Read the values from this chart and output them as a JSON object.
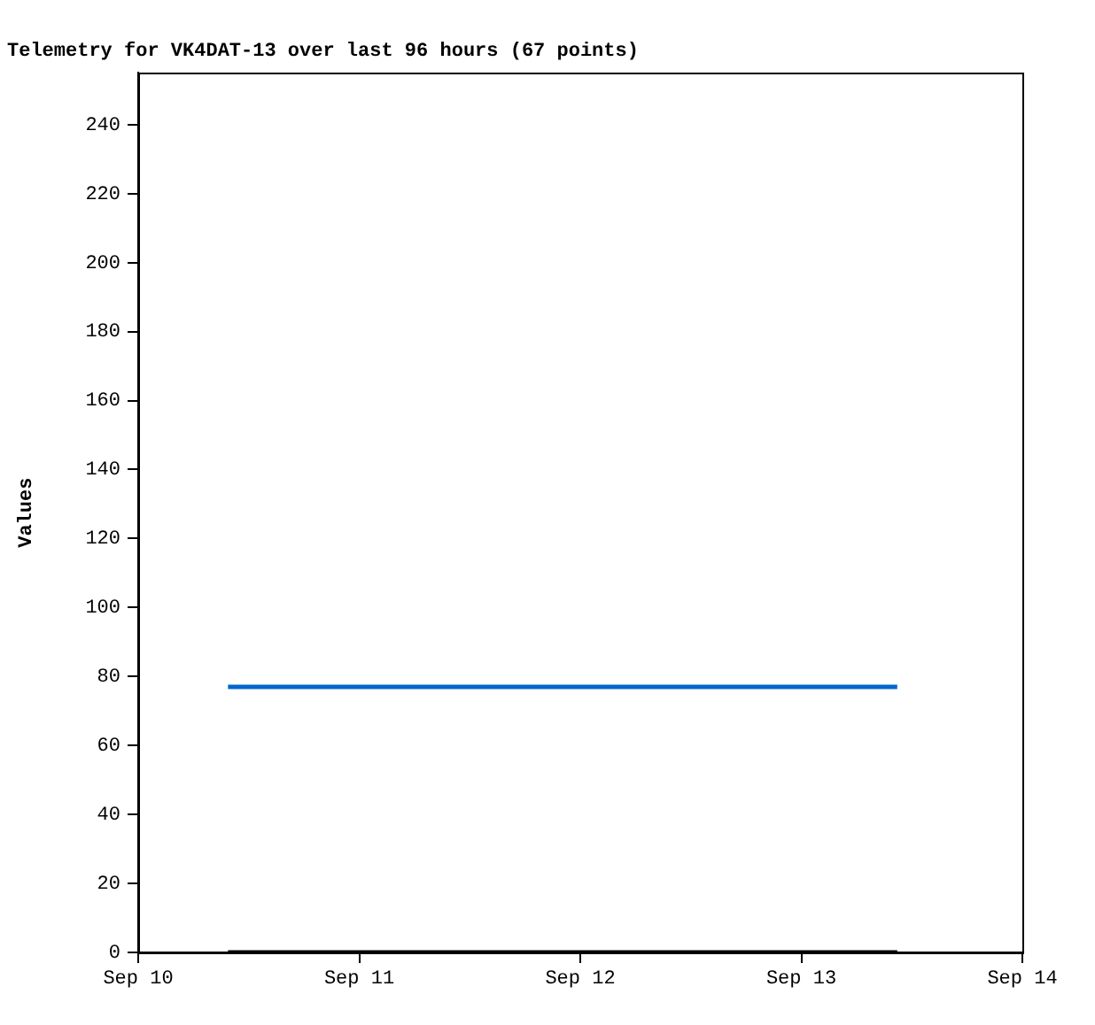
{
  "chart_data": {
    "type": "line",
    "title": "Telemetry for VK4DAT-13 over last 96 hours (67 points)",
    "ylabel": "Values",
    "xlim": [
      "--09-10",
      "--09-14"
    ],
    "xticks": [
      {
        "value": "--09-10",
        "label": "Sep 10"
      },
      {
        "value": "--09-11",
        "label": "Sep 11"
      },
      {
        "value": "--09-12",
        "label": "Sep 12"
      },
      {
        "value": "--09-13",
        "label": "Sep 13"
      },
      {
        "value": "--09-14",
        "label": "Sep 14"
      }
    ],
    "ylim": [
      0,
      255
    ],
    "yticks": [
      0,
      20,
      40,
      60,
      80,
      100,
      120,
      140,
      160,
      180,
      200,
      220,
      240
    ],
    "grid": false,
    "legend": false,
    "marker": "none",
    "line_style": "solid",
    "series": [
      {
        "color": "#0066cc",
        "x": [
          "--09-10T09:45",
          "--09-13T10:25"
        ],
        "values": [
          77,
          77
        ]
      },
      {
        "color": "#000000",
        "x": [
          "--09-10T09:45",
          "--09-13T10:25"
        ],
        "values": [
          0,
          0
        ]
      }
    ]
  }
}
